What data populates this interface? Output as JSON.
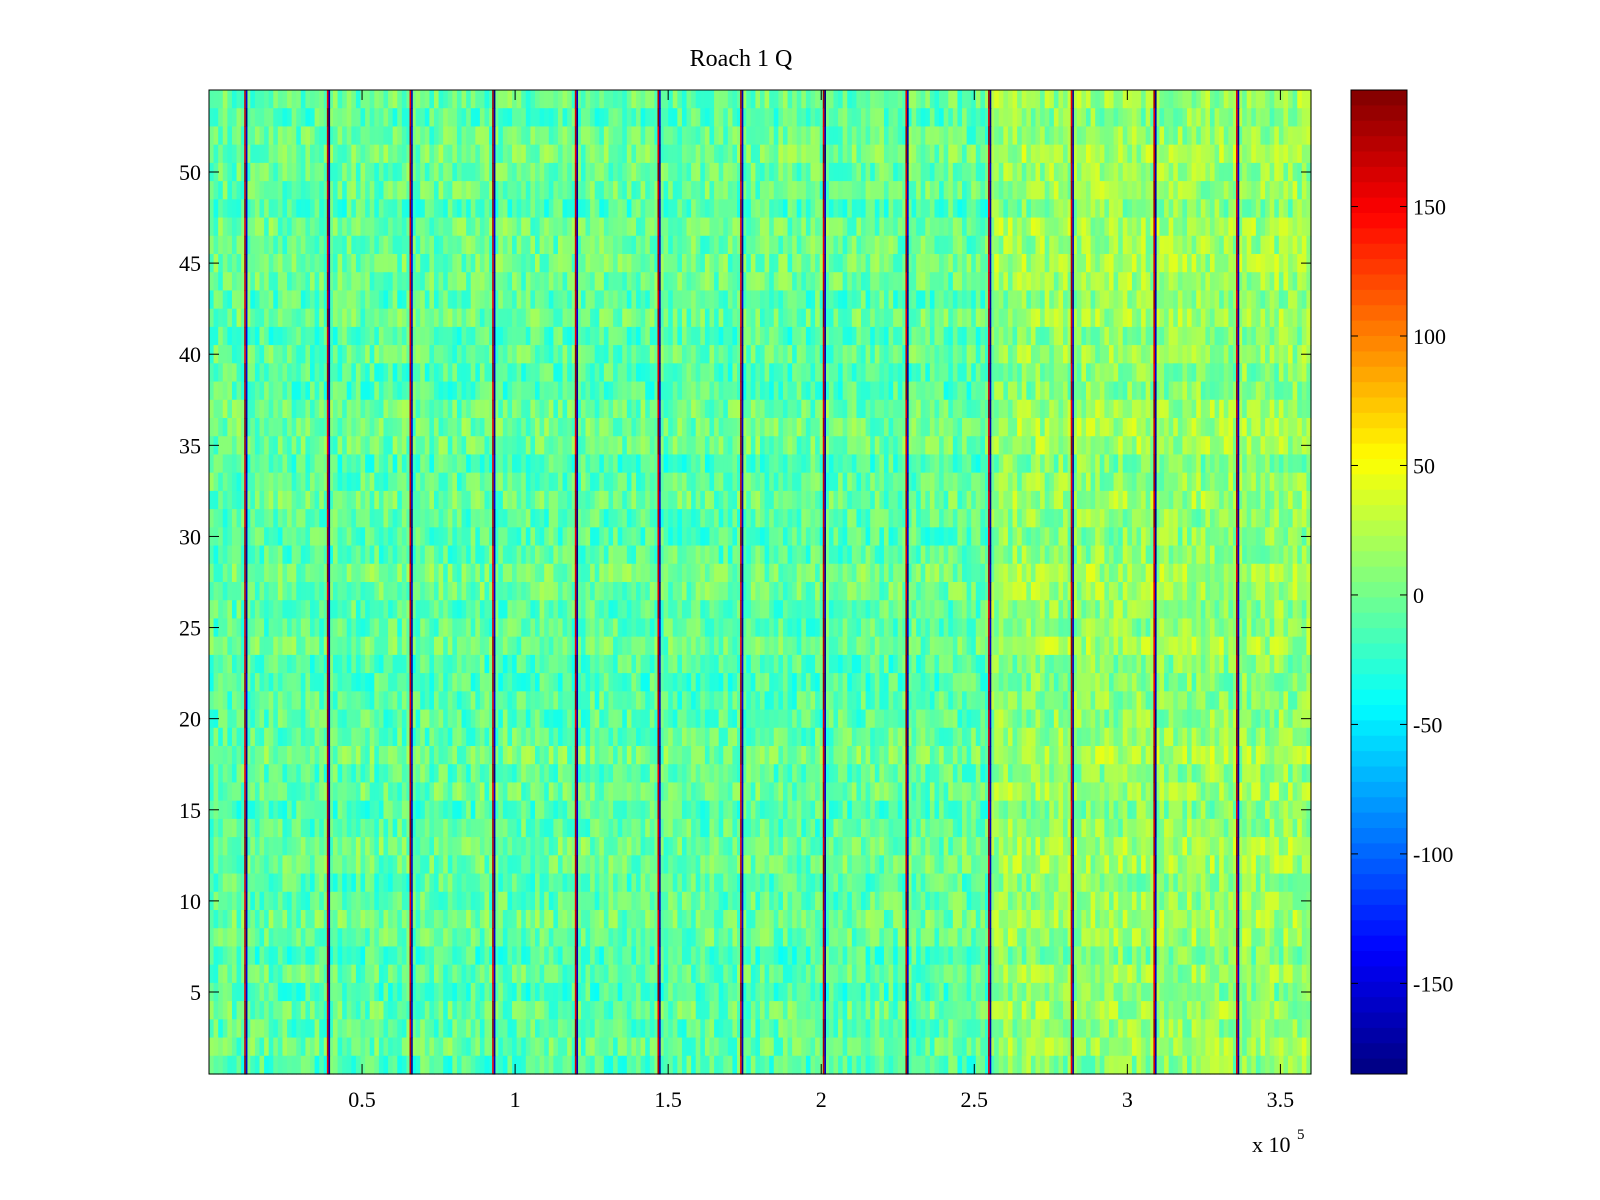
{
  "chart_data": {
    "type": "heatmap",
    "title": "Roach 1 Q",
    "xlabel": "",
    "ylabel": "",
    "x_exponent_label": "x 10",
    "x_exponent": "5",
    "xlim": [
      0,
      3.6
    ],
    "ylim": [
      0.5,
      54.5
    ],
    "x_ticks": [
      0.5,
      1,
      1.5,
      2,
      2.5,
      3,
      3.5
    ],
    "x_tick_labels": [
      "0.5",
      "1",
      "1.5",
      "2",
      "2.5",
      "3",
      "3.5"
    ],
    "y_ticks": [
      5,
      10,
      15,
      20,
      25,
      30,
      35,
      40,
      45,
      50
    ],
    "y_tick_labels": [
      "5",
      "10",
      "15",
      "20",
      "25",
      "30",
      "35",
      "40",
      "45",
      "50"
    ],
    "rows": 54,
    "colormap": "jet",
    "clim": [
      -185,
      195
    ],
    "colorbar_ticks": [
      -150,
      -100,
      -50,
      0,
      50,
      100,
      150
    ],
    "colorbar_tick_labels": [
      "-150",
      "-100",
      "-50",
      "0",
      "50",
      "100",
      "150"
    ],
    "spike_columns_x": [
      0.12,
      0.39,
      0.66,
      0.93,
      1.2,
      1.47,
      1.74,
      2.01,
      2.28,
      2.55,
      2.82,
      3.09,
      3.36
    ],
    "background_level_by_region": [
      {
        "x_range": [
          0,
          2.55
        ],
        "mean_value": -8
      },
      {
        "x_range": [
          2.55,
          3.6
        ],
        "mean_value": 12
      }
    ],
    "grid": false
  }
}
